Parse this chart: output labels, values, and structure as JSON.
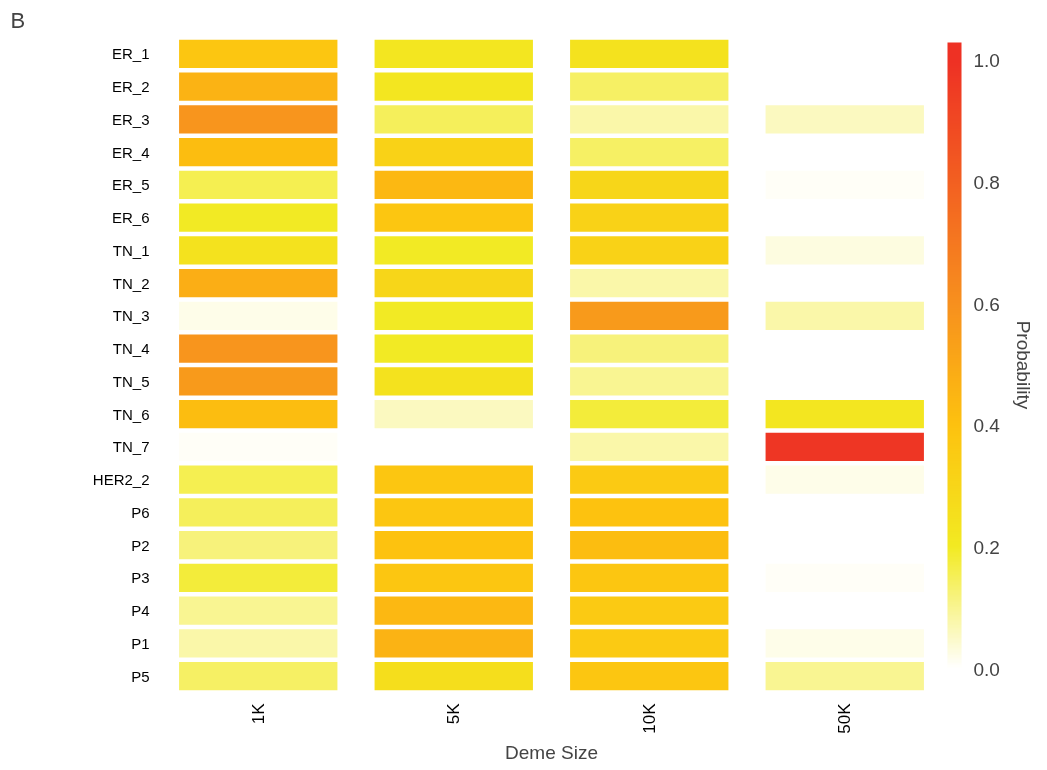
{
  "chart_data": {
    "type": "heatmap",
    "annotations": [
      "B"
    ],
    "xlabel": "Deme Size",
    "clabel": "Probability",
    "categories": [
      "1K",
      "5K",
      "10K",
      "50K"
    ],
    "y_categories": [
      "ER_1",
      "ER_2",
      "ER_3",
      "ER_4",
      "ER_5",
      "ER_6",
      "TN_1",
      "TN_2",
      "TN_3",
      "TN_4",
      "TN_5",
      "TN_6",
      "TN_7",
      "HER2_2",
      "P6",
      "P2",
      "P3",
      "P4",
      "P1",
      "P5"
    ],
    "cells": [
      [
        0.38,
        0.22,
        0.24,
        null
      ],
      [
        0.46,
        0.22,
        0.14,
        null
      ],
      [
        0.58,
        0.15,
        0.08,
        0.06
      ],
      [
        0.42,
        0.32,
        0.14,
        null
      ],
      [
        0.16,
        0.44,
        0.3,
        0.01
      ],
      [
        0.2,
        0.38,
        0.32,
        null
      ],
      [
        0.24,
        0.2,
        0.32,
        0.03
      ],
      [
        0.48,
        0.3,
        0.08,
        null
      ],
      [
        0.02,
        0.2,
        0.56,
        0.08
      ],
      [
        0.58,
        0.2,
        0.12,
        null
      ],
      [
        0.56,
        0.24,
        0.1,
        null
      ],
      [
        0.42,
        0.06,
        0.18,
        0.22
      ],
      [
        0.01,
        null,
        0.08,
        0.98
      ],
      [
        0.16,
        0.38,
        0.36,
        0.02
      ],
      [
        0.15,
        0.38,
        0.4,
        null
      ],
      [
        0.12,
        0.4,
        0.42,
        null
      ],
      [
        0.18,
        0.38,
        0.38,
        0.01
      ],
      [
        0.1,
        0.44,
        0.36,
        null
      ],
      [
        0.08,
        0.46,
        0.36,
        0.02
      ],
      [
        0.14,
        0.26,
        0.38,
        0.1
      ]
    ],
    "clim": [
      -0.03,
      1.03
    ],
    "cticks": [
      {
        "value": 0,
        "label": "0.0"
      },
      {
        "value": 0.2,
        "label": "0.2"
      },
      {
        "value": 0.4,
        "label": "0.4"
      },
      {
        "value": 0.6,
        "label": "0.6"
      },
      {
        "value": 0.8,
        "label": "0.8"
      },
      {
        "value": 1,
        "label": "1.0"
      }
    ]
  }
}
